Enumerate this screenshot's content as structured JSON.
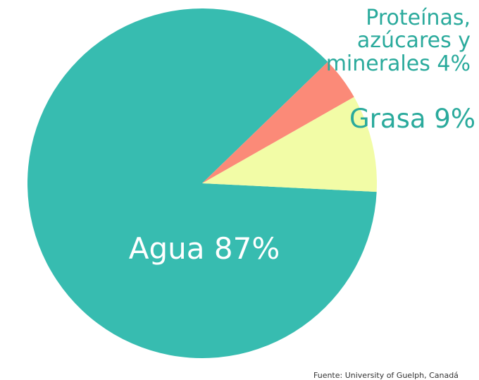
{
  "chart_data": {
    "type": "pie",
    "categories": [
      "Agua",
      "Grasa",
      "Proteínas, azúcares y minerales"
    ],
    "values": [
      87,
      9,
      4
    ],
    "value_labels": [
      "87%",
      "9%",
      "4%"
    ],
    "colors": [
      "#37bcb0",
      "#f2fca6",
      "#fb8a78"
    ],
    "source": "Fuente: University of Guelph, Canadá"
  }
}
